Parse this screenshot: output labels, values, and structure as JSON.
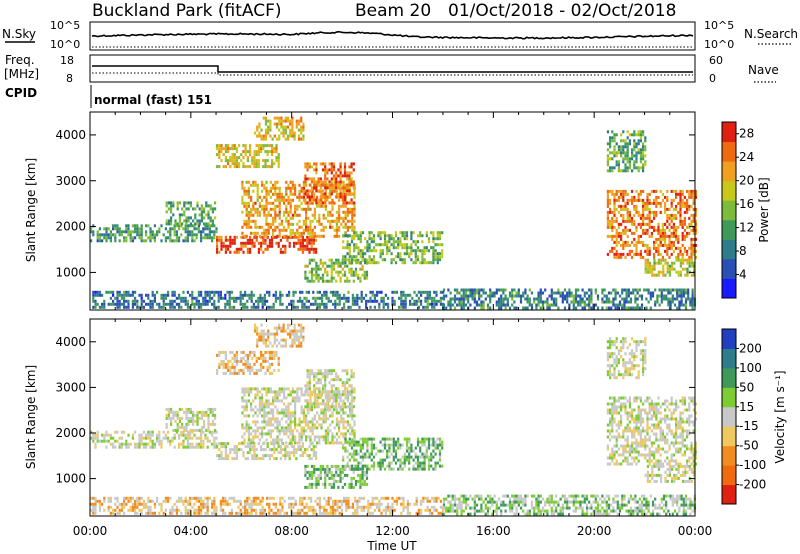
{
  "header": {
    "station": "Buckland Park (fitACF)",
    "beam": "Beam 20",
    "date_range": "01/Oct/2018 - 02/Oct/2018"
  },
  "top_panels": {
    "nsky_label": "N.Sky",
    "nsky_ticks": [
      "10^5",
      "10^0"
    ],
    "nsearch_label": "N.Search",
    "nsearch_ticks": [
      "10^5",
      "10^0"
    ],
    "freq_label_1": "Freq.",
    "freq_label_2": "[MHz]",
    "freq_ticks": [
      "18",
      "8"
    ],
    "nave_label": "Nave",
    "nave_ticks": [
      "60",
      "0"
    ],
    "cpid_label": "CPID",
    "cpid_text": "normal (fast) 151"
  },
  "x_axis": {
    "ticks": [
      "00:00",
      "04:00",
      "08:00",
      "12:00",
      "16:00",
      "20:00",
      "00:00"
    ],
    "label": "Time UT"
  },
  "chart_data": [
    {
      "type": "heatmap",
      "name": "power",
      "ylabel": "Slant Range [km]",
      "xlim": [
        0,
        24
      ],
      "ylim": [
        180,
        4500
      ],
      "yticks": [
        "1000",
        "2000",
        "3000",
        "4000"
      ],
      "colorbar": {
        "label": "Power [dB]",
        "range": [
          0,
          30
        ],
        "ticks": [
          "4",
          "8",
          "12",
          "16",
          "20",
          "24",
          "28"
        ],
        "colors": [
          "#1a1aff",
          "#2a4fb5",
          "#2f7d8a",
          "#3f9a5a",
          "#7dbb3a",
          "#c8c81a",
          "#f0a020",
          "#f06a10",
          "#e02010"
        ]
      },
      "regions": [
        {
          "t": [
            0.0,
            5.0
          ],
          "r": [
            1700,
            2050
          ],
          "level": 0.38
        },
        {
          "t": [
            3.0,
            5.0
          ],
          "r": [
            2050,
            2550
          ],
          "level": 0.42
        },
        {
          "t": [
            5.0,
            9.0
          ],
          "r": [
            1450,
            1800
          ],
          "level": 0.92
        },
        {
          "t": [
            6.0,
            10.5
          ],
          "r": [
            1800,
            3000
          ],
          "level": 0.72
        },
        {
          "t": [
            8.5,
            10.5
          ],
          "r": [
            2500,
            3400
          ],
          "level": 0.82
        },
        {
          "t": [
            5.0,
            7.5
          ],
          "r": [
            3300,
            3800
          ],
          "level": 0.62
        },
        {
          "t": [
            6.5,
            8.5
          ],
          "r": [
            3900,
            4400
          ],
          "level": 0.66
        },
        {
          "t": [
            8.5,
            11.0
          ],
          "r": [
            800,
            1300
          ],
          "level": 0.52
        },
        {
          "t": [
            10.0,
            14.0
          ],
          "r": [
            1200,
            1900
          ],
          "level": 0.48
        },
        {
          "t": [
            14.0,
            24.0
          ],
          "r": [
            250,
            650
          ],
          "level": 0.3
        },
        {
          "t": [
            0.0,
            14.0
          ],
          "r": [
            250,
            600
          ],
          "level": 0.28
        },
        {
          "t": [
            20.5,
            22.0
          ],
          "r": [
            3200,
            4100
          ],
          "level": 0.42
        },
        {
          "t": [
            20.5,
            24.0
          ],
          "r": [
            1300,
            2800
          ],
          "level": 0.8
        },
        {
          "t": [
            22.0,
            24.0
          ],
          "r": [
            950,
            1300
          ],
          "level": 0.6
        }
      ]
    },
    {
      "type": "heatmap",
      "name": "velocity",
      "ylabel": "Slant Range [km]",
      "xlim": [
        0,
        24
      ],
      "ylim": [
        180,
        4500
      ],
      "yticks": [
        "1000",
        "2000",
        "3000",
        "4000"
      ],
      "colorbar": {
        "label": "Velocity [m s⁻¹]",
        "range": [
          -250,
          250
        ],
        "ticks": [
          "200",
          "100",
          "50",
          "15",
          "-15",
          "-50",
          "-100",
          "-200"
        ],
        "colors": [
          "#2040c0",
          "#2f7d8a",
          "#3f9a5a",
          "#7dcc33",
          "#c8c8c8",
          "#f0c860",
          "#f08c20",
          "#f06a10",
          "#e02010"
        ]
      },
      "regions": [
        {
          "t": [
            0.0,
            5.0
          ],
          "r": [
            1700,
            2050
          ],
          "vel": 0
        },
        {
          "t": [
            3.0,
            5.0
          ],
          "r": [
            2050,
            2550
          ],
          "vel": 0
        },
        {
          "t": [
            5.0,
            9.0
          ],
          "r": [
            1450,
            1800
          ],
          "vel": 0
        },
        {
          "t": [
            6.0,
            10.5
          ],
          "r": [
            1800,
            3000
          ],
          "vel": 0
        },
        {
          "t": [
            8.5,
            10.5
          ],
          "r": [
            2500,
            3400
          ],
          "vel": 0
        },
        {
          "t": [
            5.0,
            7.5
          ],
          "r": [
            3300,
            3800
          ],
          "vel": -20
        },
        {
          "t": [
            6.5,
            8.5
          ],
          "r": [
            3900,
            4400
          ],
          "vel": -20
        },
        {
          "t": [
            8.5,
            11.0
          ],
          "r": [
            800,
            1300
          ],
          "vel": 30
        },
        {
          "t": [
            10.0,
            14.0
          ],
          "r": [
            1200,
            1900
          ],
          "vel": 30
        },
        {
          "t": [
            14.0,
            24.0
          ],
          "r": [
            250,
            650
          ],
          "vel": 20
        },
        {
          "t": [
            0.0,
            14.0
          ],
          "r": [
            250,
            600
          ],
          "vel": -20
        },
        {
          "t": [
            20.5,
            22.0
          ],
          "r": [
            3200,
            4100
          ],
          "vel": 0
        },
        {
          "t": [
            20.5,
            24.0
          ],
          "r": [
            1300,
            2800
          ],
          "vel": 0
        },
        {
          "t": [
            22.0,
            24.0
          ],
          "r": [
            950,
            1300
          ],
          "vel": 0
        }
      ]
    }
  ]
}
